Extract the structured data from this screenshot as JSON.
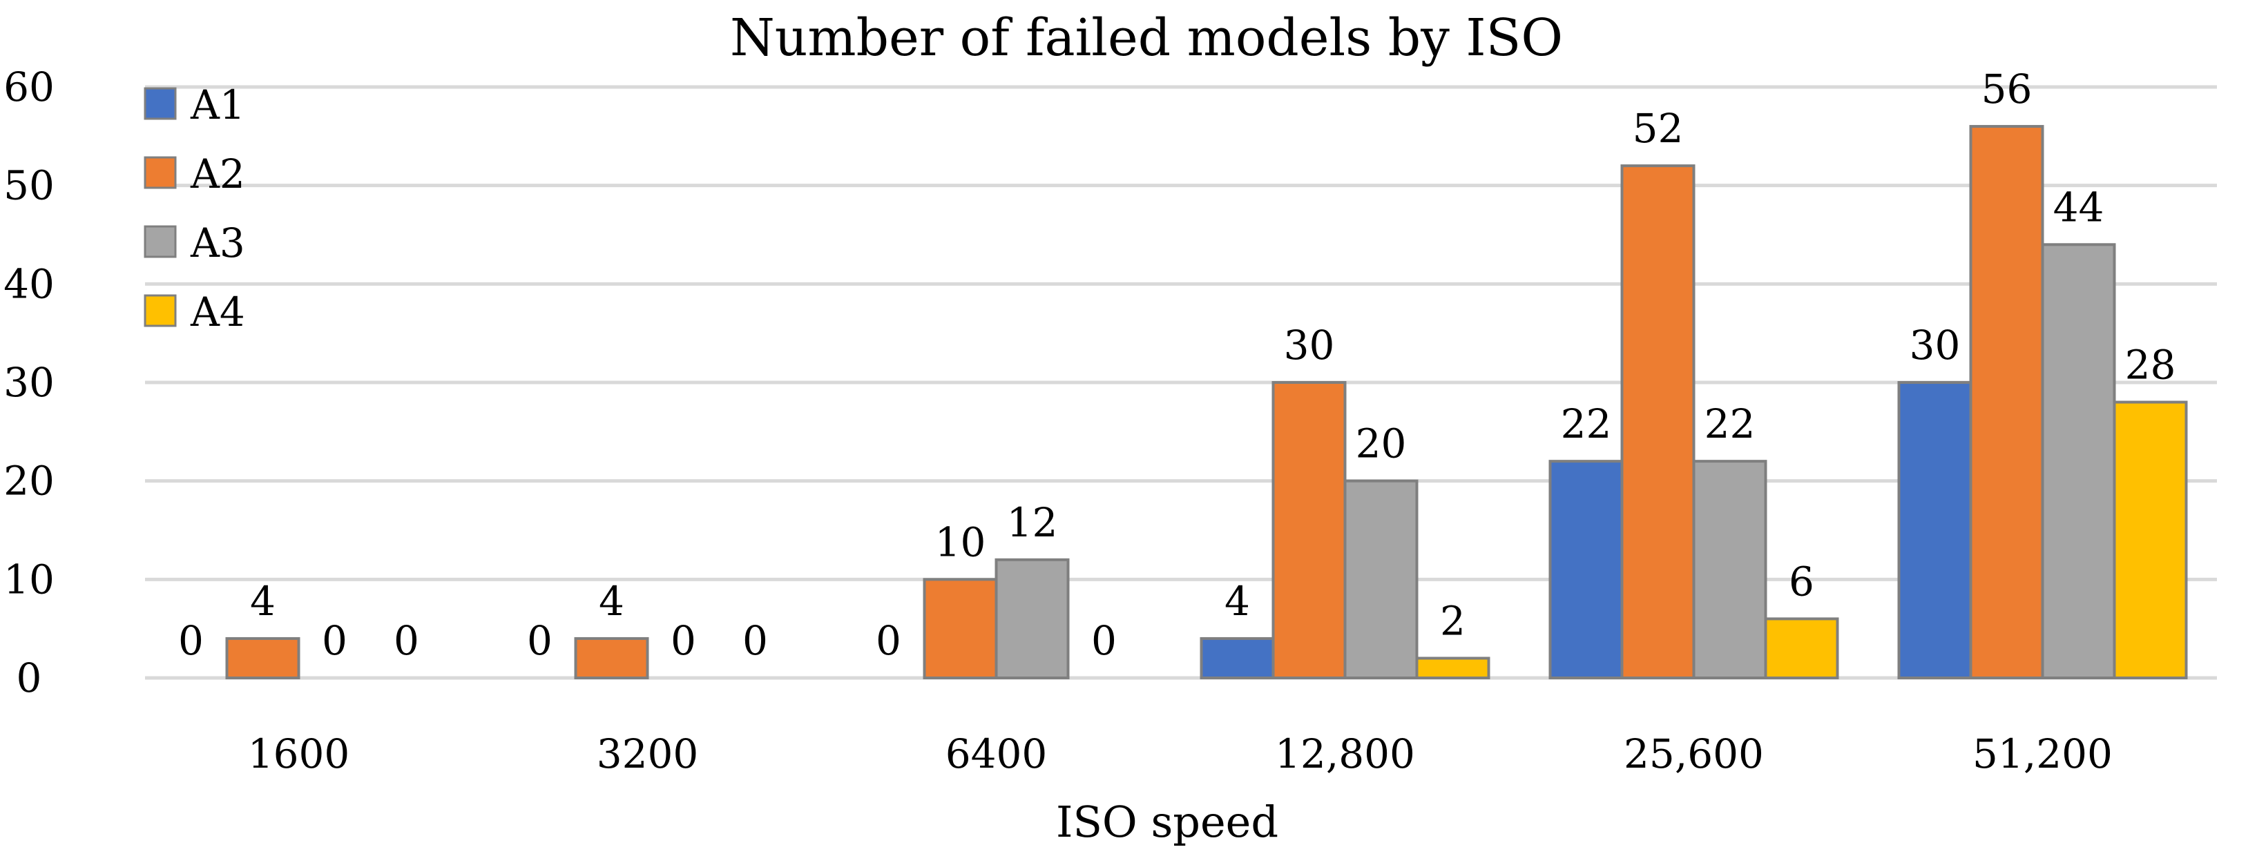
{
  "chart_data": {
    "type": "bar",
    "title": "Number of failed models by ISO",
    "xlabel": "ISO speed",
    "ylabel": "",
    "ylim": [
      0,
      60
    ],
    "yticks": [
      0,
      10,
      20,
      30,
      40,
      50,
      60
    ],
    "grid": true,
    "legend_position": "top-left",
    "categories": [
      "1600",
      "3200",
      "6400",
      "12,800",
      "25,600",
      "51,200"
    ],
    "series": [
      {
        "name": "A1",
        "color": "#4472c4",
        "values": [
          0,
          0,
          0,
          4,
          22,
          30
        ],
        "labels": [
          "0",
          "0",
          "0",
          "4",
          "22",
          "30"
        ]
      },
      {
        "name": "A2",
        "color": "#ed7d31",
        "values": [
          4,
          4,
          10,
          30,
          52,
          56
        ],
        "labels": [
          "4",
          "4",
          "10",
          "30",
          "52",
          "56"
        ]
      },
      {
        "name": "A3",
        "color": "#a5a5a5",
        "values": [
          0,
          0,
          12,
          20,
          22,
          44
        ],
        "labels": [
          "0",
          "0",
          "12",
          "20",
          "22",
          "44"
        ]
      },
      {
        "name": "A4",
        "color": "#ffc000",
        "values": [
          0,
          0,
          0,
          2,
          6,
          28
        ],
        "labels": [
          "0",
          "0",
          "0",
          "2",
          "6",
          "28"
        ]
      }
    ]
  }
}
